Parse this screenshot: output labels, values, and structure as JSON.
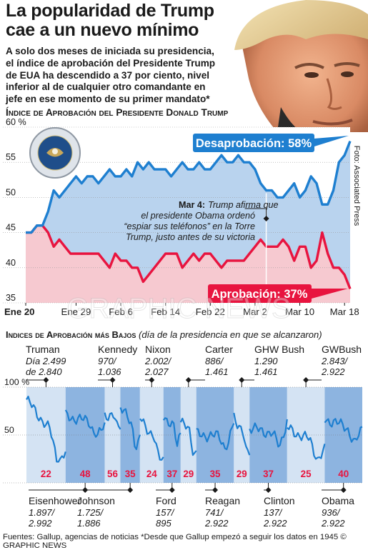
{
  "title_line1": "La popularidad de Trump",
  "title_line2": "cae a un nuevo mínimo",
  "intro": [
    "A solo dos meses de iniciada su presidencia,",
    "el índice de aprobación del Presidente Trump",
    "de EUA ha descendido a 37 por ciento, nivel",
    "inferior al de cualquier otro comandante en",
    "jefe en ese momento de su primer mandato*"
  ],
  "chart1_title": "Índice de Aprobación del Presidente Donald Trump",
  "photo_credit": "Foto: Associated Press",
  "watermark": "GRAPHIC NEWS",
  "colors": {
    "disapproval": "#1e7fd0",
    "approval": "#e8143f",
    "disapproval_fill": "#b9d3ee",
    "approval_fill": "#f6c9d0",
    "band_dark": "#8db4e0",
    "band_light": "#d4e3f3",
    "tag_red": "#e8143f"
  },
  "chart_data": [
    {
      "type": "line",
      "title": "Índice de Aprobación del Presidente Donald Trump",
      "x_ticks": [
        "Ene 20",
        "Ene 29",
        "Feb 6",
        "Feb 14",
        "Feb 22",
        "Mar 2",
        "Mar 10",
        "Mar 18"
      ],
      "y_ticks": [
        "60 %",
        "55",
        "50",
        "45",
        "40",
        "35"
      ],
      "ylim": [
        35,
        60
      ],
      "x": [
        "Ene 20",
        "Ene 21",
        "Ene 22",
        "Ene 23",
        "Ene 24",
        "Ene 25",
        "Ene 26",
        "Ene 27",
        "Ene 28",
        "Ene 29",
        "Ene 30",
        "Ene 31",
        "Feb 1",
        "Feb 2",
        "Feb 3",
        "Feb 4",
        "Feb 5",
        "Feb 6",
        "Feb 7",
        "Feb 8",
        "Feb 9",
        "Feb 10",
        "Feb 11",
        "Feb 12",
        "Feb 13",
        "Feb 14",
        "Feb 15",
        "Feb 16",
        "Feb 17",
        "Feb 18",
        "Feb 19",
        "Feb 20",
        "Feb 21",
        "Feb 22",
        "Feb 23",
        "Feb 24",
        "Feb 25",
        "Feb 26",
        "Feb 27",
        "Feb 28",
        "Mar 1",
        "Mar 2",
        "Mar 3",
        "Mar 4",
        "Mar 5",
        "Mar 6",
        "Mar 7",
        "Mar 8",
        "Mar 9",
        "Mar 10",
        "Mar 11",
        "Mar 12",
        "Mar 13",
        "Mar 14",
        "Mar 15",
        "Mar 16",
        "Mar 17",
        "Mar 18",
        "Mar 19"
      ],
      "series": [
        {
          "name": "Desaprobación",
          "label": "Desaprobación: 58%",
          "values": [
            45,
            45,
            46,
            46,
            48,
            51,
            50,
            51,
            52,
            53,
            52,
            53,
            53,
            52,
            53,
            54,
            53,
            53,
            54,
            53,
            55,
            54,
            55,
            54,
            54,
            54,
            53,
            54,
            55,
            54,
            54,
            55,
            54,
            54,
            55,
            56,
            55,
            55,
            56,
            55,
            55,
            54,
            52,
            51,
            51,
            50,
            50,
            51,
            52,
            50,
            51,
            53,
            52,
            49,
            49,
            51,
            55,
            56,
            58
          ]
        },
        {
          "name": "Aprobación",
          "label": "Aprobación: 37%",
          "values": [
            45,
            45,
            46,
            46,
            45,
            43,
            44,
            43,
            42,
            42,
            42,
            42,
            42,
            42,
            41,
            40,
            42,
            41,
            41,
            40,
            40,
            38,
            39,
            40,
            41,
            42,
            42,
            42,
            40,
            41,
            42,
            41,
            42,
            42,
            41,
            40,
            41,
            41,
            41,
            41,
            42,
            43,
            44,
            43,
            43,
            43,
            44,
            43,
            41,
            43,
            43,
            40,
            41,
            45,
            42,
            40,
            40,
            39,
            37
          ]
        }
      ],
      "annotation": {
        "date": "Mar 4",
        "bold": "Mar 4:",
        "lines": [
          "Trump afirma que",
          "el presidente Obama ordenó",
          "“espiar sus teléfonos” en la Torre",
          "Trump, justo antes de su victoria"
        ]
      }
    },
    {
      "type": "line",
      "title": "Indices de Aprobación más Bajos",
      "subtitle": "(día de la presidencia en que se alcanzaron)",
      "y_ticks": [
        "100 %",
        "50",
        "0"
      ],
      "ylim": [
        0,
        100
      ],
      "presidents": [
        {
          "name": "Truman",
          "detail": [
            "Día 2.499",
            "de 2.840"
          ],
          "low": 22
        },
        {
          "name": "Eisenhower",
          "detail": [
            "1.897/",
            "2.992"
          ],
          "low": 48
        },
        {
          "name": "Kennedy",
          "detail": [
            "970/",
            "1.036"
          ],
          "low": 56
        },
        {
          "name": "Johnson",
          "detail": [
            "1.725/",
            "1.886"
          ],
          "low": 35
        },
        {
          "name": "Nixon",
          "detail": [
            "2.002/",
            "2.027"
          ],
          "low": 24
        },
        {
          "name": "Ford",
          "detail": [
            "157/",
            "895"
          ],
          "low": 37
        },
        {
          "name": "Carter",
          "detail": [
            "886/",
            "1.461"
          ],
          "low": 29
        },
        {
          "name": "Reagan",
          "detail": [
            "741/",
            "2.922"
          ],
          "low": 35
        },
        {
          "name": "GHW Bush",
          "detail": [
            "1.290",
            "1.461"
          ],
          "low": 29
        },
        {
          "name": "Clinton",
          "detail": [
            "137/",
            "2.922"
          ],
          "low": 37
        },
        {
          "name": "GWBush",
          "detail": [
            "2.843/",
            "2.922"
          ],
          "low": 25
        },
        {
          "name": "Obama",
          "detail": [
            "936/",
            "2.922"
          ],
          "low": 40
        }
      ]
    }
  ],
  "chart2_title_bold": "Indices de Aprobación más Bajos",
  "chart2_subtitle": "(día de la presidencia en que se alcanzaron)",
  "footer": "Fuentes: Gallup, agencias de noticias  *Desde que Gallup empezó a seguir los datos en 1945  © GRAPHIC NEWS"
}
